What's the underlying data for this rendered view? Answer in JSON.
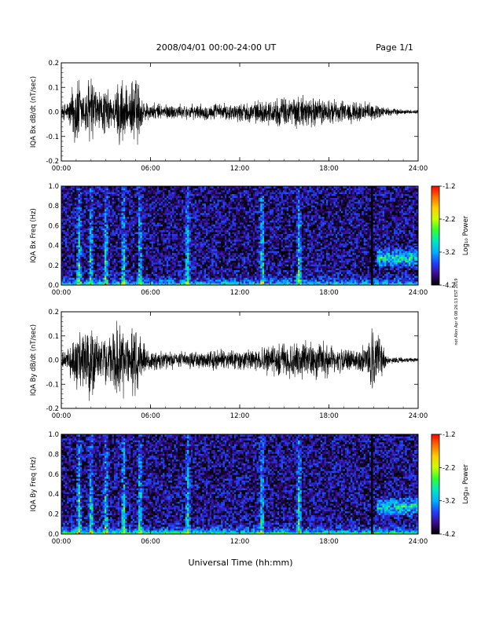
{
  "header": {
    "date_range": "2008/04/01  00:00-24:00 UT",
    "page": "Page 1/1"
  },
  "footer": {
    "xlabel": "Universal Time (hh:mm)"
  },
  "side_note": "not Alon Apr 6 08:26:13 EST 2019",
  "colors": {
    "waveform": "#000000",
    "spectrogram_low": "#1a0a55",
    "spectrogram_high": "#ff0000",
    "background": "#ffffff"
  },
  "colorbar": {
    "label": "Log₁₀ Power",
    "range": [
      -4.2,
      -1.2
    ],
    "ticks": [
      "-1.2",
      "-2.2",
      "-3.2",
      "-4.2"
    ],
    "colormap": [
      "#000000",
      "#3a0a8c",
      "#2040ff",
      "#00b0ff",
      "#00e8c0",
      "#30ff30",
      "#c8ff00",
      "#ffd000",
      "#ff7000",
      "#ff0000"
    ]
  },
  "chart_data": [
    {
      "type": "line",
      "id": "bx-dbdt",
      "title": "",
      "xlabel": "",
      "ylabel": "IQA Bx dB/dt (nT/sec)",
      "xlim": [
        0,
        24
      ],
      "ylim": [
        -0.2,
        0.2
      ],
      "xticks": [
        "00:00",
        "06:00",
        "12:00",
        "18:00",
        "24:00"
      ],
      "yticks": [
        "0.2",
        "0.1",
        "0.0",
        "-0.1",
        "-0.2"
      ],
      "x": [
        0,
        0.5,
        1,
        1.5,
        2,
        2.5,
        3,
        3.5,
        4,
        4.5,
        5,
        5.5,
        6,
        7,
        8,
        9,
        10,
        11,
        12,
        13,
        14,
        15,
        16,
        17,
        18,
        19,
        20,
        21,
        22,
        23,
        24
      ],
      "series": [
        {
          "envelope": [
            0.03,
            0.06,
            0.2,
            0.1,
            0.2,
            0.09,
            0.12,
            0.07,
            0.2,
            0.08,
            0.2,
            0.06,
            0.04,
            0.04,
            0.035,
            0.035,
            0.04,
            0.04,
            0.045,
            0.05,
            0.06,
            0.07,
            0.08,
            0.07,
            0.06,
            0.055,
            0.05,
            0.04,
            0.02,
            0.012,
            0.01
          ]
        }
      ]
    },
    {
      "type": "heatmap",
      "id": "bx-spectrogram",
      "title": "",
      "xlabel": "",
      "ylabel": "IQA Bx Freq (Hz)",
      "xlim": [
        0,
        24
      ],
      "ylim": [
        0.0,
        1.0
      ],
      "xticks": [
        "00:00",
        "06:00",
        "12:00",
        "18:00",
        "24:00"
      ],
      "yticks": [
        "1.0",
        "0.8",
        "0.6",
        "0.4",
        "0.2",
        "0.0"
      ],
      "background_log_power": -3.9,
      "low_freq_band_log_power": -2.6,
      "bursts_ut": [
        1.2,
        2.0,
        3.0,
        4.2,
        5.3,
        8.5,
        13.5,
        16.0
      ],
      "gap_ut": 20.9,
      "late_pc_band": {
        "start_ut": 21.2,
        "end_ut": 24.0,
        "freq_hz": [
          0.2,
          0.35
        ]
      }
    },
    {
      "type": "line",
      "id": "by-dbdt",
      "title": "",
      "xlabel": "",
      "ylabel": "IQA By dB/dt (nT/sec)",
      "xlim": [
        0,
        24
      ],
      "ylim": [
        -0.2,
        0.2
      ],
      "xticks": [
        "00:00",
        "06:00",
        "12:00",
        "18:00",
        "24:00"
      ],
      "yticks": [
        "0.2",
        "0.1",
        "0.0",
        "-0.1",
        "-0.2"
      ],
      "x": [
        0,
        0.5,
        1,
        1.5,
        2,
        2.5,
        3,
        3.5,
        4,
        4.5,
        5,
        5.5,
        6,
        7,
        8,
        9,
        10,
        11,
        12,
        13,
        14,
        15,
        16,
        17,
        18,
        19,
        20,
        21,
        22,
        23,
        24
      ],
      "series": [
        {
          "envelope": [
            0.03,
            0.06,
            0.15,
            0.12,
            0.2,
            0.09,
            0.12,
            0.14,
            0.2,
            0.12,
            0.2,
            0.08,
            0.05,
            0.045,
            0.04,
            0.04,
            0.045,
            0.05,
            0.05,
            0.06,
            0.07,
            0.08,
            0.1,
            0.09,
            0.08,
            0.06,
            0.05,
            0.15,
            0.02,
            0.012,
            0.01
          ]
        }
      ]
    },
    {
      "type": "heatmap",
      "id": "by-spectrogram",
      "title": "",
      "xlabel": "",
      "ylabel": "IQA By Freq (Hz)",
      "xlim": [
        0,
        24
      ],
      "ylim": [
        0.0,
        1.0
      ],
      "xticks": [
        "00:00",
        "06:00",
        "12:00",
        "18:00",
        "24:00"
      ],
      "yticks": [
        "1.0",
        "0.8",
        "0.6",
        "0.4",
        "0.2",
        "0.0"
      ],
      "background_log_power": -3.9,
      "low_freq_band_log_power": -2.5,
      "bursts_ut": [
        1.2,
        2.0,
        3.0,
        4.2,
        5.3,
        8.5,
        13.5,
        16.0
      ],
      "gap_ut": 20.9,
      "late_pc_band": {
        "start_ut": 21.2,
        "end_ut": 24.0,
        "freq_hz": [
          0.2,
          0.35
        ]
      }
    }
  ]
}
